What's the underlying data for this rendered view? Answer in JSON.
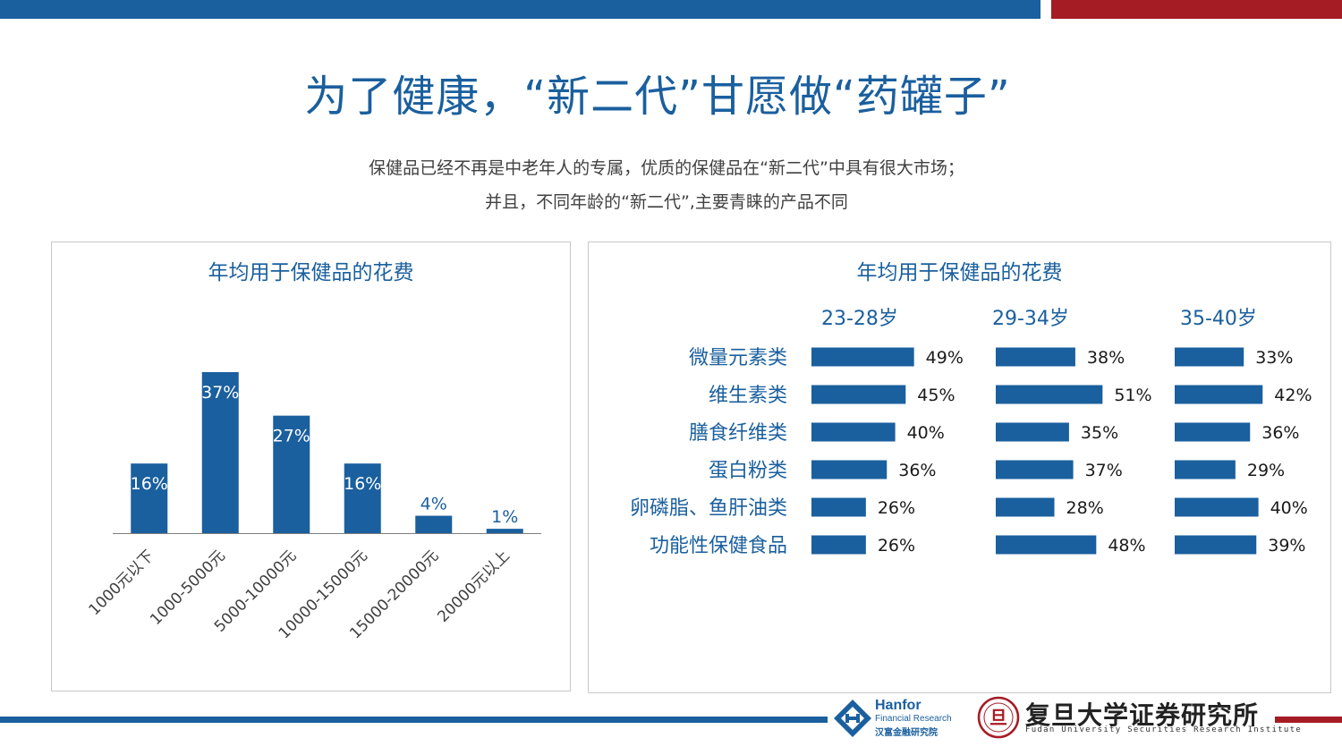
{
  "header": {
    "title": "为了健康，“新二代”甘愿做“药罐子”",
    "subtitle_line1": "保健品已经不再是中老年人的专属，优质的保健品在“新二代”中具有很大市场；",
    "subtitle_line2": "并且，不同年龄的“新二代”,主要青睐的产品不同"
  },
  "colors": {
    "brand_blue": "#1a5f9e",
    "brand_red": "#a51c24"
  },
  "chart_data": [
    {
      "type": "bar",
      "title": "年均用于保健品的花费",
      "categories": [
        "1000元以下",
        "1000-5000元",
        "5000-10000元",
        "10000-15000元",
        "15000-20000元",
        "20000元以上"
      ],
      "values": [
        16,
        37,
        27,
        16,
        4,
        1
      ],
      "labels": [
        "16%",
        "37%",
        "27%",
        "16%",
        "4%",
        "1%"
      ],
      "xlabel": "",
      "ylabel": "",
      "ylim": [
        0,
        40
      ],
      "grid": false
    },
    {
      "type": "bar",
      "orientation": "horizontal",
      "title": "年均用于保健品的花费",
      "categories": [
        "微量元素类",
        "维生素类",
        "膳食纤维类",
        "蛋白粉类",
        "卵磷脂、鱼肝油类",
        "功能性保健食品"
      ],
      "series": [
        {
          "name": "23-28岁",
          "values": [
            49,
            45,
            40,
            36,
            26,
            26
          ],
          "labels": [
            "49%",
            "45%",
            "40%",
            "36%",
            "26%",
            "26%"
          ]
        },
        {
          "name": "29-34岁",
          "values": [
            38,
            51,
            35,
            37,
            28,
            48
          ],
          "labels": [
            "38%",
            "51%",
            "35%",
            "37%",
            "28%",
            "48%"
          ]
        },
        {
          "name": "35-40岁",
          "values": [
            33,
            42,
            36,
            29,
            40,
            39
          ],
          "labels": [
            "33%",
            "42%",
            "36%",
            "29%",
            "40%",
            "39%"
          ]
        }
      ]
    }
  ],
  "logos": {
    "hanfor_name": "Hanfor",
    "hanfor_sub": "Financial Research",
    "hanfor_cn": "汉富金融研究院",
    "fudan_cn": "复旦大学证券研究所",
    "fudan_en": "Fudan University Securities Research Institute",
    "fudan_seal_char": "旦"
  }
}
